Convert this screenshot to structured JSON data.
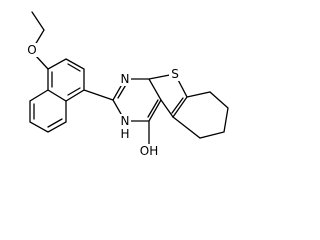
{
  "atoms": {
    "ether_oxygen": "O",
    "sulfur": "S",
    "nitrogen_1": "N",
    "nitrogen_3": "N",
    "nh_hydrogen": "H",
    "hydroxyl": "OH"
  }
}
